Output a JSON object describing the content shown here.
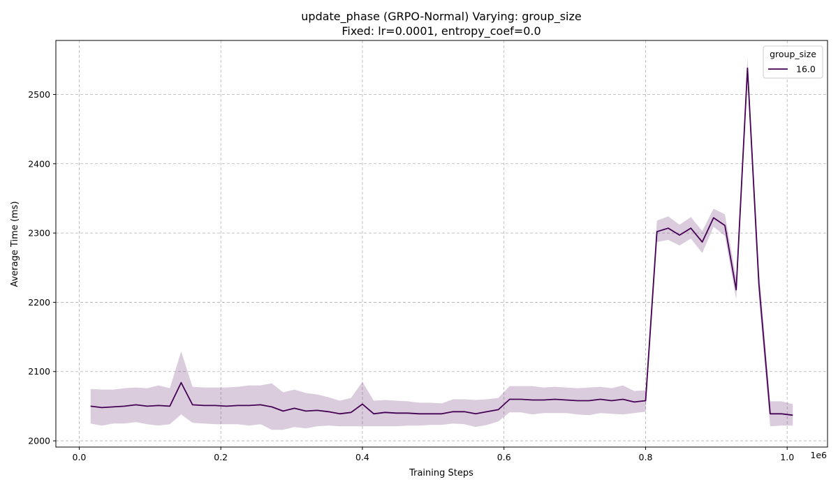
{
  "chart_data": {
    "type": "line",
    "title_line1": "update_phase (GRPO-Normal) Varying: group_size",
    "title_line2": "Fixed: lr=0.0001, entropy_coef=0.0",
    "xlabel": "Training Steps",
    "ylabel": "Average Time (ms)",
    "x_offset_label": "1e6",
    "xlim": [
      -0.033,
      1.057
    ],
    "ylim": [
      1991,
      2578
    ],
    "xticks": [
      0.0,
      0.2,
      0.4,
      0.6,
      0.8,
      1.0
    ],
    "xtick_labels": [
      "0.0",
      "0.2",
      "0.4",
      "0.6",
      "0.8",
      "1.0"
    ],
    "yticks": [
      2000,
      2100,
      2200,
      2300,
      2400,
      2500
    ],
    "ytick_labels": [
      "2000",
      "2100",
      "2200",
      "2300",
      "2400",
      "2500"
    ],
    "grid": true,
    "legend": {
      "title": "group_size",
      "placement": "top-right"
    },
    "series": [
      {
        "name": "16.0",
        "color": "#440154",
        "band_color": "#440154",
        "band_opacity": 0.2,
        "x": [
          0.016,
          0.032,
          0.048,
          0.064,
          0.08,
          0.096,
          0.112,
          0.128,
          0.144,
          0.16,
          0.176,
          0.192,
          0.208,
          0.224,
          0.24,
          0.256,
          0.272,
          0.288,
          0.304,
          0.32,
          0.336,
          0.352,
          0.368,
          0.384,
          0.4,
          0.416,
          0.432,
          0.448,
          0.464,
          0.48,
          0.496,
          0.512,
          0.528,
          0.544,
          0.56,
          0.576,
          0.592,
          0.608,
          0.624,
          0.64,
          0.656,
          0.672,
          0.688,
          0.704,
          0.72,
          0.736,
          0.752,
          0.768,
          0.784,
          0.8,
          0.816,
          0.832,
          0.848,
          0.864,
          0.88,
          0.896,
          0.912,
          0.928,
          0.944,
          0.96,
          0.976,
          0.992,
          1.008
        ],
        "y": [
          2050,
          2048,
          2049,
          2050,
          2052,
          2050,
          2051,
          2050,
          2084,
          2052,
          2051,
          2051,
          2050,
          2051,
          2051,
          2052,
          2049,
          2043,
          2047,
          2043,
          2044,
          2042,
          2039,
          2041,
          2053,
          2039,
          2041,
          2040,
          2040,
          2039,
          2039,
          2039,
          2042,
          2042,
          2039,
          2042,
          2045,
          2060,
          2060,
          2059,
          2059,
          2060,
          2059,
          2058,
          2058,
          2060,
          2058,
          2060,
          2056,
          2058,
          2302,
          2307,
          2297,
          2307,
          2287,
          2322,
          2311,
          2218,
          2538,
          2227,
          2039,
          2039,
          2037
        ],
        "lower": [
          2025,
          2022,
          2025,
          2025,
          2027,
          2024,
          2022,
          2024,
          2038,
          2026,
          2025,
          2024,
          2024,
          2024,
          2022,
          2024,
          2016,
          2016,
          2020,
          2018,
          2021,
          2022,
          2021,
          2021,
          2021,
          2021,
          2021,
          2021,
          2022,
          2022,
          2023,
          2023,
          2025,
          2024,
          2020,
          2023,
          2028,
          2041,
          2041,
          2038,
          2040,
          2040,
          2040,
          2038,
          2037,
          2040,
          2039,
          2038,
          2040,
          2042,
          2287,
          2290,
          2282,
          2292,
          2271,
          2309,
          2296,
          2204,
          2520,
          2206,
          2021,
          2022,
          2022
        ],
        "upper": [
          2075,
          2074,
          2074,
          2076,
          2077,
          2076,
          2080,
          2076,
          2129,
          2078,
          2077,
          2077,
          2077,
          2078,
          2080,
          2080,
          2083,
          2070,
          2074,
          2069,
          2067,
          2063,
          2058,
          2062,
          2085,
          2058,
          2059,
          2058,
          2057,
          2055,
          2055,
          2054,
          2060,
          2060,
          2059,
          2060,
          2062,
          2079,
          2079,
          2079,
          2077,
          2078,
          2077,
          2076,
          2077,
          2078,
          2076,
          2080,
          2072,
          2073,
          2318,
          2324,
          2312,
          2323,
          2303,
          2335,
          2327,
          2235,
          2553,
          2248,
          2057,
          2057,
          2053
        ]
      }
    ]
  }
}
